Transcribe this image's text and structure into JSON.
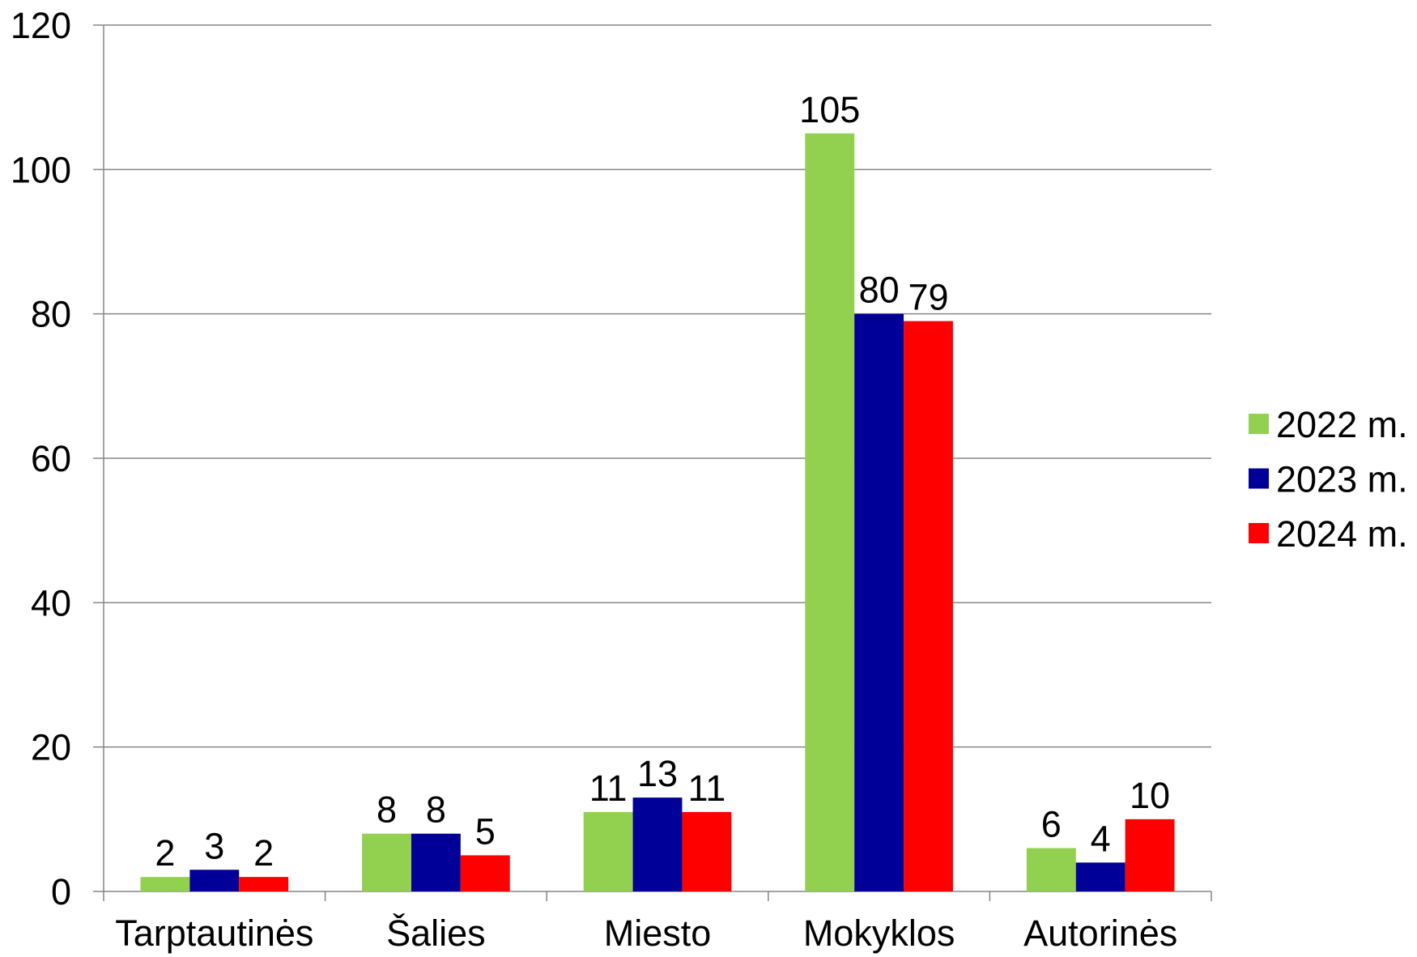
{
  "chart_data": {
    "type": "bar",
    "categories": [
      "Tarptautinės",
      "Šalies",
      "Miesto",
      "Mokyklos",
      "Autorinės"
    ],
    "series": [
      {
        "name": "2022 m.",
        "values": [
          2,
          8,
          11,
          105,
          6
        ],
        "color": "#92D050"
      },
      {
        "name": "2023 m.",
        "values": [
          3,
          8,
          13,
          80,
          4
        ],
        "color": "#000099"
      },
      {
        "name": "2024 m.",
        "values": [
          2,
          5,
          11,
          79,
          10
        ],
        "color": "#FF0000"
      }
    ],
    "ylim": [
      0,
      120
    ],
    "yticks": [
      0,
      20,
      40,
      60,
      80,
      100,
      120
    ],
    "grid": true,
    "grid_color": "#868686",
    "legend": "right",
    "data_labels": true
  }
}
